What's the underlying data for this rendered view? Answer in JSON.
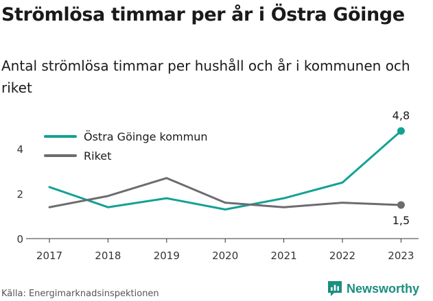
{
  "title": "Strömlösa timmar per år i Östra Göinge",
  "subtitle": "Antal strömlösa timmar per hushåll och år i kommunen och riket",
  "source": "Källa: Energimarknadsinspektionen",
  "brand": "Newsworthy",
  "colors": {
    "teal": "#12a293",
    "gray": "#6d6b70",
    "brand": "#1b8e80"
  },
  "chart_data": {
    "type": "line",
    "x": [
      "2017",
      "2018",
      "2019",
      "2020",
      "2021",
      "2022",
      "2023"
    ],
    "series": [
      {
        "name": "Östra Göinge kommun",
        "color": "#12a293",
        "values": [
          2.3,
          1.4,
          1.8,
          1.3,
          1.8,
          2.5,
          4.8
        ]
      },
      {
        "name": "Riket",
        "color": "#6d6b70",
        "values": [
          1.4,
          1.9,
          2.7,
          1.6,
          1.4,
          1.6,
          1.5
        ]
      }
    ],
    "yticks": [
      0,
      2,
      4
    ],
    "ylim": [
      0,
      5.2
    ],
    "end_labels": [
      "4,8",
      "1,5"
    ],
    "legend": "top-left",
    "grid": false
  }
}
